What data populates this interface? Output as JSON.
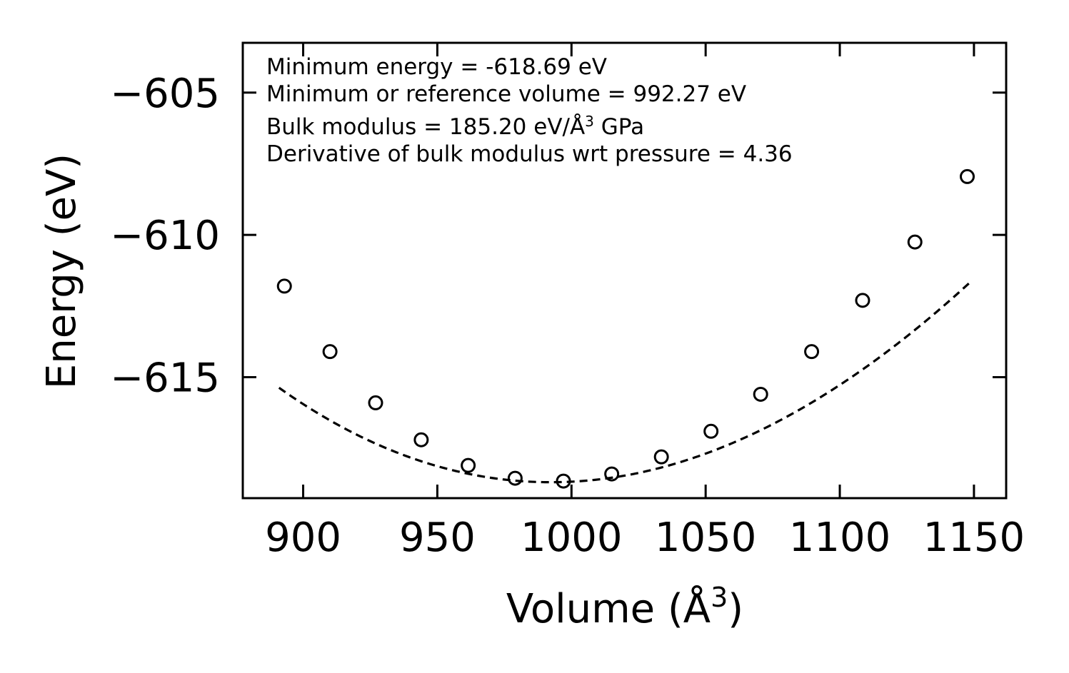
{
  "chart_data": {
    "type": "scatter",
    "xlabel": "Volume (Å",
    "xlabel_sup": "3",
    "xlabel_end": ")",
    "ylabel": "Energy (eV)",
    "xlim": [
      877.5,
      1162
    ],
    "ylim": [
      -619.25,
      -603.25
    ],
    "x_ticks": [
      900,
      950,
      1000,
      1050,
      1100,
      1150
    ],
    "x_tick_labels": [
      "900",
      "950",
      "1000",
      "1050",
      "1100",
      "1150"
    ],
    "y_ticks": [
      -605,
      -610,
      -615
    ],
    "y_tick_labels": [
      "−605",
      "−610",
      "−615"
    ],
    "annotations": [
      {
        "text": "Minimum energy = -618.69 eV"
      },
      {
        "text": "Minimum or reference volume = 992.27 eV"
      },
      {
        "text": "Bulk modulus = 185.20 eV/Å",
        "sup": "3",
        "tail": " GPa"
      },
      {
        "text": "Derivative of bulk modulus wrt pressure = 4.36"
      }
    ],
    "series": [
      {
        "name": "data",
        "marker": "open-circle",
        "x": [
          893.0,
          910.0,
          927.0,
          944.0,
          961.5,
          979.0,
          997.0,
          1015.0,
          1033.5,
          1052.0,
          1070.5,
          1089.5,
          1108.5,
          1128.0,
          1147.5
        ],
        "y": [
          -611.8,
          -614.1,
          -615.9,
          -617.2,
          -618.1,
          -618.55,
          -618.65,
          -618.4,
          -617.8,
          -616.9,
          -615.6,
          -614.1,
          -612.3,
          -610.25,
          -607.95
        ]
      },
      {
        "name": "fit",
        "style": "dashed",
        "x0": 891,
        "x1": 1149,
        "v0": 992.27,
        "e0": -618.69,
        "curvature": 0.0003095,
        "cubic": -1.4e-07
      }
    ]
  }
}
